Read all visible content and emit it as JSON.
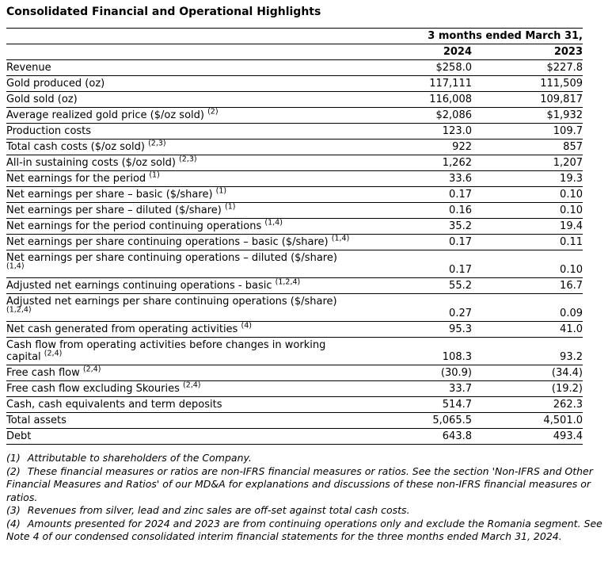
{
  "title": "Consolidated Financial and Operational Highlights",
  "colors": {
    "text": "#000000",
    "background": "#ffffff",
    "rule_lines": "#000000"
  },
  "table": {
    "period_header": "3 months ended March 31,",
    "col_headers": [
      "2024",
      "2023"
    ],
    "rows": [
      {
        "label": "Revenue",
        "sup": "",
        "line2": "",
        "sup2": "",
        "y2024": "$258.0",
        "y2023": "$227.8"
      },
      {
        "label": "Gold produced (oz)",
        "sup": "",
        "line2": "",
        "sup2": "",
        "y2024": "117,111",
        "y2023": "111,509"
      },
      {
        "label": "Gold sold (oz)",
        "sup": "",
        "line2": "",
        "sup2": "",
        "y2024": "116,008",
        "y2023": "109,817"
      },
      {
        "label": "Average realized gold price ($/oz sold)",
        "sup": "(2)",
        "line2": "",
        "sup2": "",
        "y2024": "$2,086",
        "y2023": "$1,932"
      },
      {
        "label": "Production costs",
        "sup": "",
        "line2": "",
        "sup2": "",
        "y2024": "123.0",
        "y2023": "109.7"
      },
      {
        "label": "Total cash costs ($/oz sold)",
        "sup": "(2,3)",
        "line2": "",
        "sup2": "",
        "y2024": "922",
        "y2023": "857"
      },
      {
        "label": "All-in sustaining costs ($/oz sold)",
        "sup": "(2,3)",
        "line2": "",
        "sup2": "",
        "y2024": "1,262",
        "y2023": "1,207"
      },
      {
        "label": "Net earnings for the period",
        "sup": "(1)",
        "line2": "",
        "sup2": "",
        "y2024": "33.6",
        "y2023": "19.3"
      },
      {
        "label": "Net earnings per share – basic ($/share)",
        "sup": "(1)",
        "line2": "",
        "sup2": "",
        "y2024": "0.17",
        "y2023": "0.10"
      },
      {
        "label": "Net earnings per share – diluted ($/share)",
        "sup": "(1)",
        "line2": "",
        "sup2": "",
        "y2024": "0.16",
        "y2023": "0.10"
      },
      {
        "label": "Net earnings for the period continuing operations",
        "sup": "(1,4)",
        "line2": "",
        "sup2": "",
        "y2024": "35.2",
        "y2023": "19.4"
      },
      {
        "label": "Net earnings per share continuing operations – basic ($/share)",
        "sup": "(1,4)",
        "line2": "",
        "sup2": "",
        "y2024": "0.17",
        "y2023": "0.11"
      },
      {
        "label": "Net earnings per share continuing operations – diluted ($/share)",
        "sup": "",
        "line2": "",
        "sup2": "(1,4)",
        "y2024": "0.17",
        "y2023": "0.10"
      },
      {
        "label": "Adjusted net earnings continuing operations - basic",
        "sup": "(1,2,4)",
        "line2": "",
        "sup2": "",
        "y2024": "55.2",
        "y2023": "16.7"
      },
      {
        "label": "Adjusted net earnings per share continuing operations ($/share)",
        "sup": "",
        "line2": "",
        "sup2": "(1,2,4)",
        "y2024": "0.27",
        "y2023": "0.09"
      },
      {
        "label": "Net cash generated from operating activities",
        "sup": "(4)",
        "line2": "",
        "sup2": "",
        "y2024": "95.3",
        "y2023": "41.0"
      },
      {
        "label": "Cash flow from operating activities before changes in working",
        "sup": "",
        "line2": "capital",
        "sup2": "(2,4)",
        "y2024": "108.3",
        "y2023": "93.2"
      },
      {
        "label": "Free cash flow",
        "sup": "(2,4)",
        "line2": "",
        "sup2": "",
        "y2024": "(30.9)",
        "y2023": "(34.4)"
      },
      {
        "label": "Free cash flow excluding Skouries",
        "sup": "(2,4)",
        "line2": "",
        "sup2": "",
        "y2024": "33.7",
        "y2023": "(19.2)"
      },
      {
        "label": "Cash, cash equivalents and term deposits",
        "sup": "",
        "line2": "",
        "sup2": "",
        "y2024": "514.7",
        "y2023": "262.3"
      },
      {
        "label": "Total assets",
        "sup": "",
        "line2": "",
        "sup2": "",
        "y2024": "5,065.5",
        "y2023": "4,501.0"
      },
      {
        "label": "Debt",
        "sup": "",
        "line2": "",
        "sup2": "",
        "y2024": "643.8",
        "y2023": "493.4"
      }
    ]
  },
  "footnotes": [
    {
      "num": "(1)",
      "text": "Attributable to shareholders of the Company."
    },
    {
      "num": "(2)",
      "text": "These financial measures or ratios are non-IFRS financial measures or ratios. See the section 'Non-IFRS and Other Financial Measures and Ratios' of our MD&A for explanations and discussions of these non-IFRS financial measures or ratios."
    },
    {
      "num": "(3)",
      "text": "Revenues from silver, lead and zinc sales are off-set against total cash costs."
    },
    {
      "num": "(4)",
      "text": "Amounts presented for 2024 and 2023 are from continuing operations only and exclude the Romania segment. See Note 4 of our condensed consolidated interim financial statements for the three months ended March 31, 2024."
    }
  ]
}
